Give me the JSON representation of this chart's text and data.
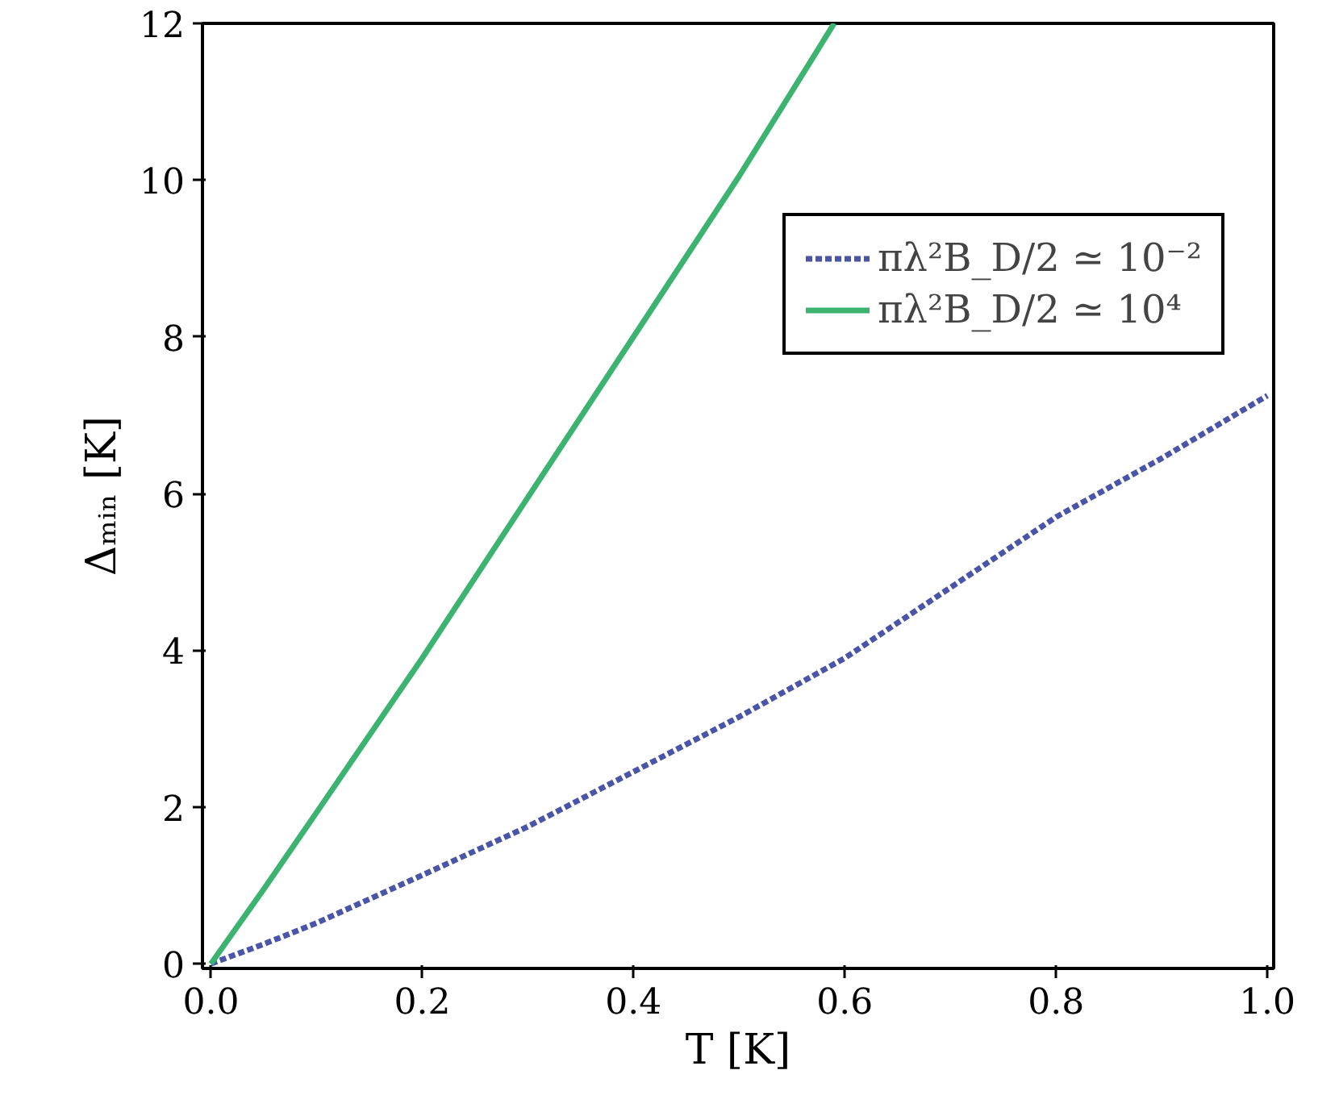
{
  "chart_data": {
    "type": "line",
    "xlabel": "T [K]",
    "ylabel": "Δₘᵢₙ [K]",
    "xlim": [
      -0.008,
      1.006
    ],
    "ylim": [
      -0.06,
      12
    ],
    "xticks": [
      {
        "value": 0,
        "label": "0.0"
      },
      0.2,
      0.4,
      0.6,
      0.8,
      {
        "value": 1,
        "label": "1.0"
      }
    ],
    "yticks": [
      0,
      2,
      4,
      6,
      8,
      10,
      12
    ],
    "grid": false,
    "legend": "top right",
    "series": [
      {
        "name": "πλ²B_D/2 ≃ 10⁻²",
        "color": "#4a55a8",
        "line_style": "dashed",
        "x": [
          0,
          0.05,
          0.1,
          0.2,
          0.3,
          0.4,
          0.5,
          0.6,
          0.7,
          0.8,
          0.9,
          1.0
        ],
        "values": [
          0,
          0.25,
          0.52,
          1.13,
          1.75,
          2.45,
          3.15,
          3.9,
          4.8,
          5.7,
          6.45,
          7.25
        ]
      },
      {
        "name": "πλ²B_D/2 ≃ 10⁴",
        "color": "#3cb371",
        "line_style": "solid",
        "x": [
          0,
          0.05,
          0.1,
          0.2,
          0.3,
          0.4,
          0.5,
          0.59
        ],
        "values": [
          0,
          0.95,
          1.93,
          3.9,
          5.95,
          8.0,
          10.05,
          12
        ]
      }
    ]
  }
}
